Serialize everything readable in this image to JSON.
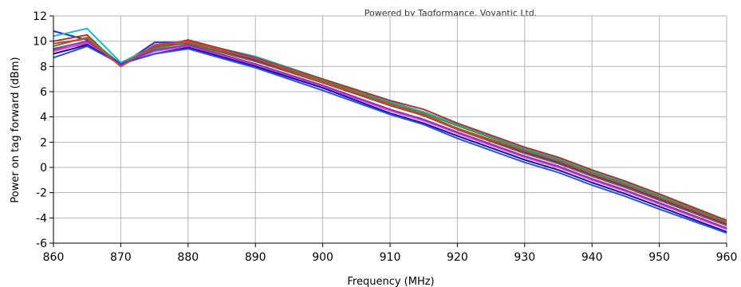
{
  "chart_data": {
    "type": "line",
    "watermark": "Powered by Tagformance, Voyantic Ltd.",
    "xlabel": "Frequency (MHz)",
    "ylabel": "Power on tag forward (dBm)",
    "xlim": [
      860,
      960
    ],
    "ylim": [
      -6,
      12
    ],
    "xticks": [
      860,
      870,
      880,
      890,
      900,
      910,
      920,
      930,
      940,
      950,
      960
    ],
    "yticks": [
      -6,
      -4,
      -2,
      0,
      2,
      4,
      6,
      8,
      10,
      12
    ],
    "grid": true,
    "legend": "none",
    "x": [
      860,
      865,
      870,
      875,
      880,
      890,
      900,
      910,
      915,
      920,
      930,
      935,
      940,
      945,
      950,
      960
    ],
    "series": [
      {
        "color": "#1f2fd0",
        "values": [
          10.8,
          10.1,
          8.1,
          9.9,
          9.9,
          8.5,
          6.8,
          5.0,
          4.1,
          3.1,
          1.2,
          0.4,
          -0.6,
          -1.5,
          -2.5,
          -4.5
        ]
      },
      {
        "color": "#20b8c8",
        "values": [
          10.4,
          11.0,
          8.3,
          9.6,
          10.0,
          8.8,
          7.0,
          5.2,
          4.4,
          3.4,
          1.5,
          0.7,
          -0.3,
          -1.2,
          -2.2,
          -4.2
        ]
      },
      {
        "color": "#b03030",
        "values": [
          10.0,
          10.5,
          8.0,
          9.5,
          10.1,
          8.7,
          7.0,
          5.3,
          4.6,
          3.5,
          1.6,
          0.8,
          -0.2,
          -1.1,
          -2.1,
          -4.2
        ]
      },
      {
        "color": "#3a9a3a",
        "values": [
          9.6,
          10.3,
          8.2,
          9.4,
          9.9,
          8.6,
          6.9,
          5.1,
          4.3,
          3.3,
          1.4,
          0.6,
          -0.4,
          -1.3,
          -2.3,
          -4.3
        ]
      },
      {
        "color": "#8b5a2b",
        "values": [
          9.3,
          9.8,
          8.1,
          9.6,
          9.8,
          8.4,
          6.7,
          4.9,
          4.1,
          3.0,
          1.1,
          0.3,
          -0.7,
          -1.6,
          -2.6,
          -4.6
        ]
      },
      {
        "color": "#e040e0",
        "values": [
          9.2,
          9.9,
          8.2,
          9.2,
          9.6,
          8.1,
          6.4,
          4.5,
          3.7,
          2.7,
          0.8,
          0.0,
          -1.0,
          -1.9,
          -2.9,
          -4.9
        ]
      },
      {
        "color": "#9030c0",
        "values": [
          9.4,
          10.0,
          8.2,
          9.3,
          9.7,
          8.2,
          6.5,
          4.6,
          3.8,
          2.8,
          0.9,
          0.1,
          -0.9,
          -1.8,
          -2.8,
          -4.8
        ]
      },
      {
        "color": "#1010a0",
        "values": [
          9.0,
          9.7,
          8.2,
          9.0,
          9.5,
          8.0,
          6.3,
          4.3,
          3.5,
          2.5,
          0.6,
          -0.2,
          -1.2,
          -2.1,
          -3.1,
          -5.1
        ]
      },
      {
        "color": "#2a50e0",
        "values": [
          8.7,
          9.6,
          8.2,
          9.0,
          9.4,
          7.9,
          6.1,
          4.2,
          3.4,
          2.3,
          0.4,
          -0.4,
          -1.4,
          -2.3,
          -3.3,
          -5.2
        ]
      },
      {
        "color": "#d04040",
        "values": [
          9.8,
          10.2,
          8.0,
          9.7,
          10.0,
          8.6,
          6.8,
          5.0,
          4.2,
          3.1,
          1.3,
          0.5,
          -0.5,
          -1.4,
          -2.4,
          -4.4
        ]
      }
    ]
  }
}
